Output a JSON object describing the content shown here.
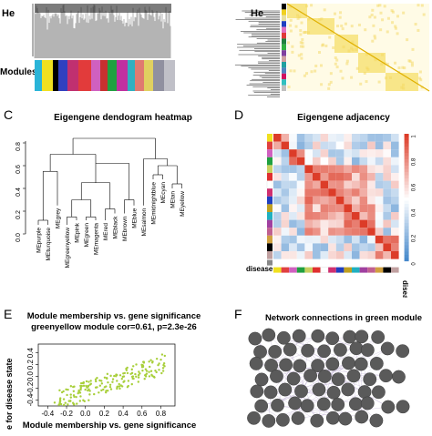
{
  "panel_a": {
    "ylabel": "He",
    "modules_label": "Modules",
    "colors": [
      "#2ab4d8",
      "#f0e020",
      "#000000",
      "#3040c0",
      "#c03070",
      "#e23b3b",
      "#d060c0",
      "#c83030",
      "#20a040",
      "#c030a0",
      "#30b0c0",
      "#e07a70",
      "#e0d060",
      "#9090a0",
      "#c0c0c8"
    ]
  },
  "panel_b": {
    "ylabel": "He",
    "side_colors": [
      "#000000",
      "#f0d020",
      "#e8e0a0",
      "#2040c0",
      "#e070c0",
      "#e03a3a",
      "#208040",
      "#30b040",
      "#8040a0",
      "#d0a0a0",
      "#20a0a0",
      "#5080c0",
      "#d01060",
      "#30c0c0",
      "#c0c0c0"
    ]
  },
  "panel_c": {
    "letter": "C",
    "title": "Eigengene dendogram heatmap",
    "yticks": [
      "0.8",
      "0.6",
      "0.4",
      "0.2",
      "0.0"
    ],
    "leaves": [
      "MEpurple",
      "MEturquoise",
      "MEgrey",
      "MEgreenyellow",
      "MEpink",
      "MEgreen",
      "MEmagenta",
      "MEred",
      "MEblack",
      "MEbrown",
      "MEblue",
      "MEsalmon",
      "MEmidnightblue",
      "MEcyan",
      "MEtan",
      "MEyellow"
    ]
  },
  "panel_d": {
    "letter": "D",
    "title": "Eigengene adjacency",
    "row_label": "disease",
    "col_label": "disease",
    "scale": [
      "1",
      "0.8",
      "0.6",
      "0.4",
      "0.2",
      "0"
    ],
    "colors": [
      "#f0e020",
      "#e04040",
      "#d060c0",
      "#20a040",
      "#c8d060",
      "#e03030",
      "#ffffff",
      "#d03070",
      "#2040c0",
      "#c0a020",
      "#20b0c0",
      "#a040a0",
      "#c06090",
      "#d0a040",
      "#000000",
      "#c0a0a0"
    ]
  },
  "panel_e": {
    "letter": "E",
    "title1": "Module membership vs. gene significance",
    "title2": "greenyellow module cor=0.61, p=2.3e-26",
    "ylabel": "e for disease state",
    "xlabel": "Module membership vs. gene significance",
    "xticks": [
      "-0.4",
      "-0.2",
      "0.0",
      "0.2",
      "0.4",
      "0.6",
      "0.8"
    ],
    "yticks": [
      "0.4",
      "0.2",
      "0.0",
      "-0.2",
      "-0.4"
    ]
  },
  "panel_f": {
    "letter": "F",
    "title": "Network connections in green module"
  }
}
